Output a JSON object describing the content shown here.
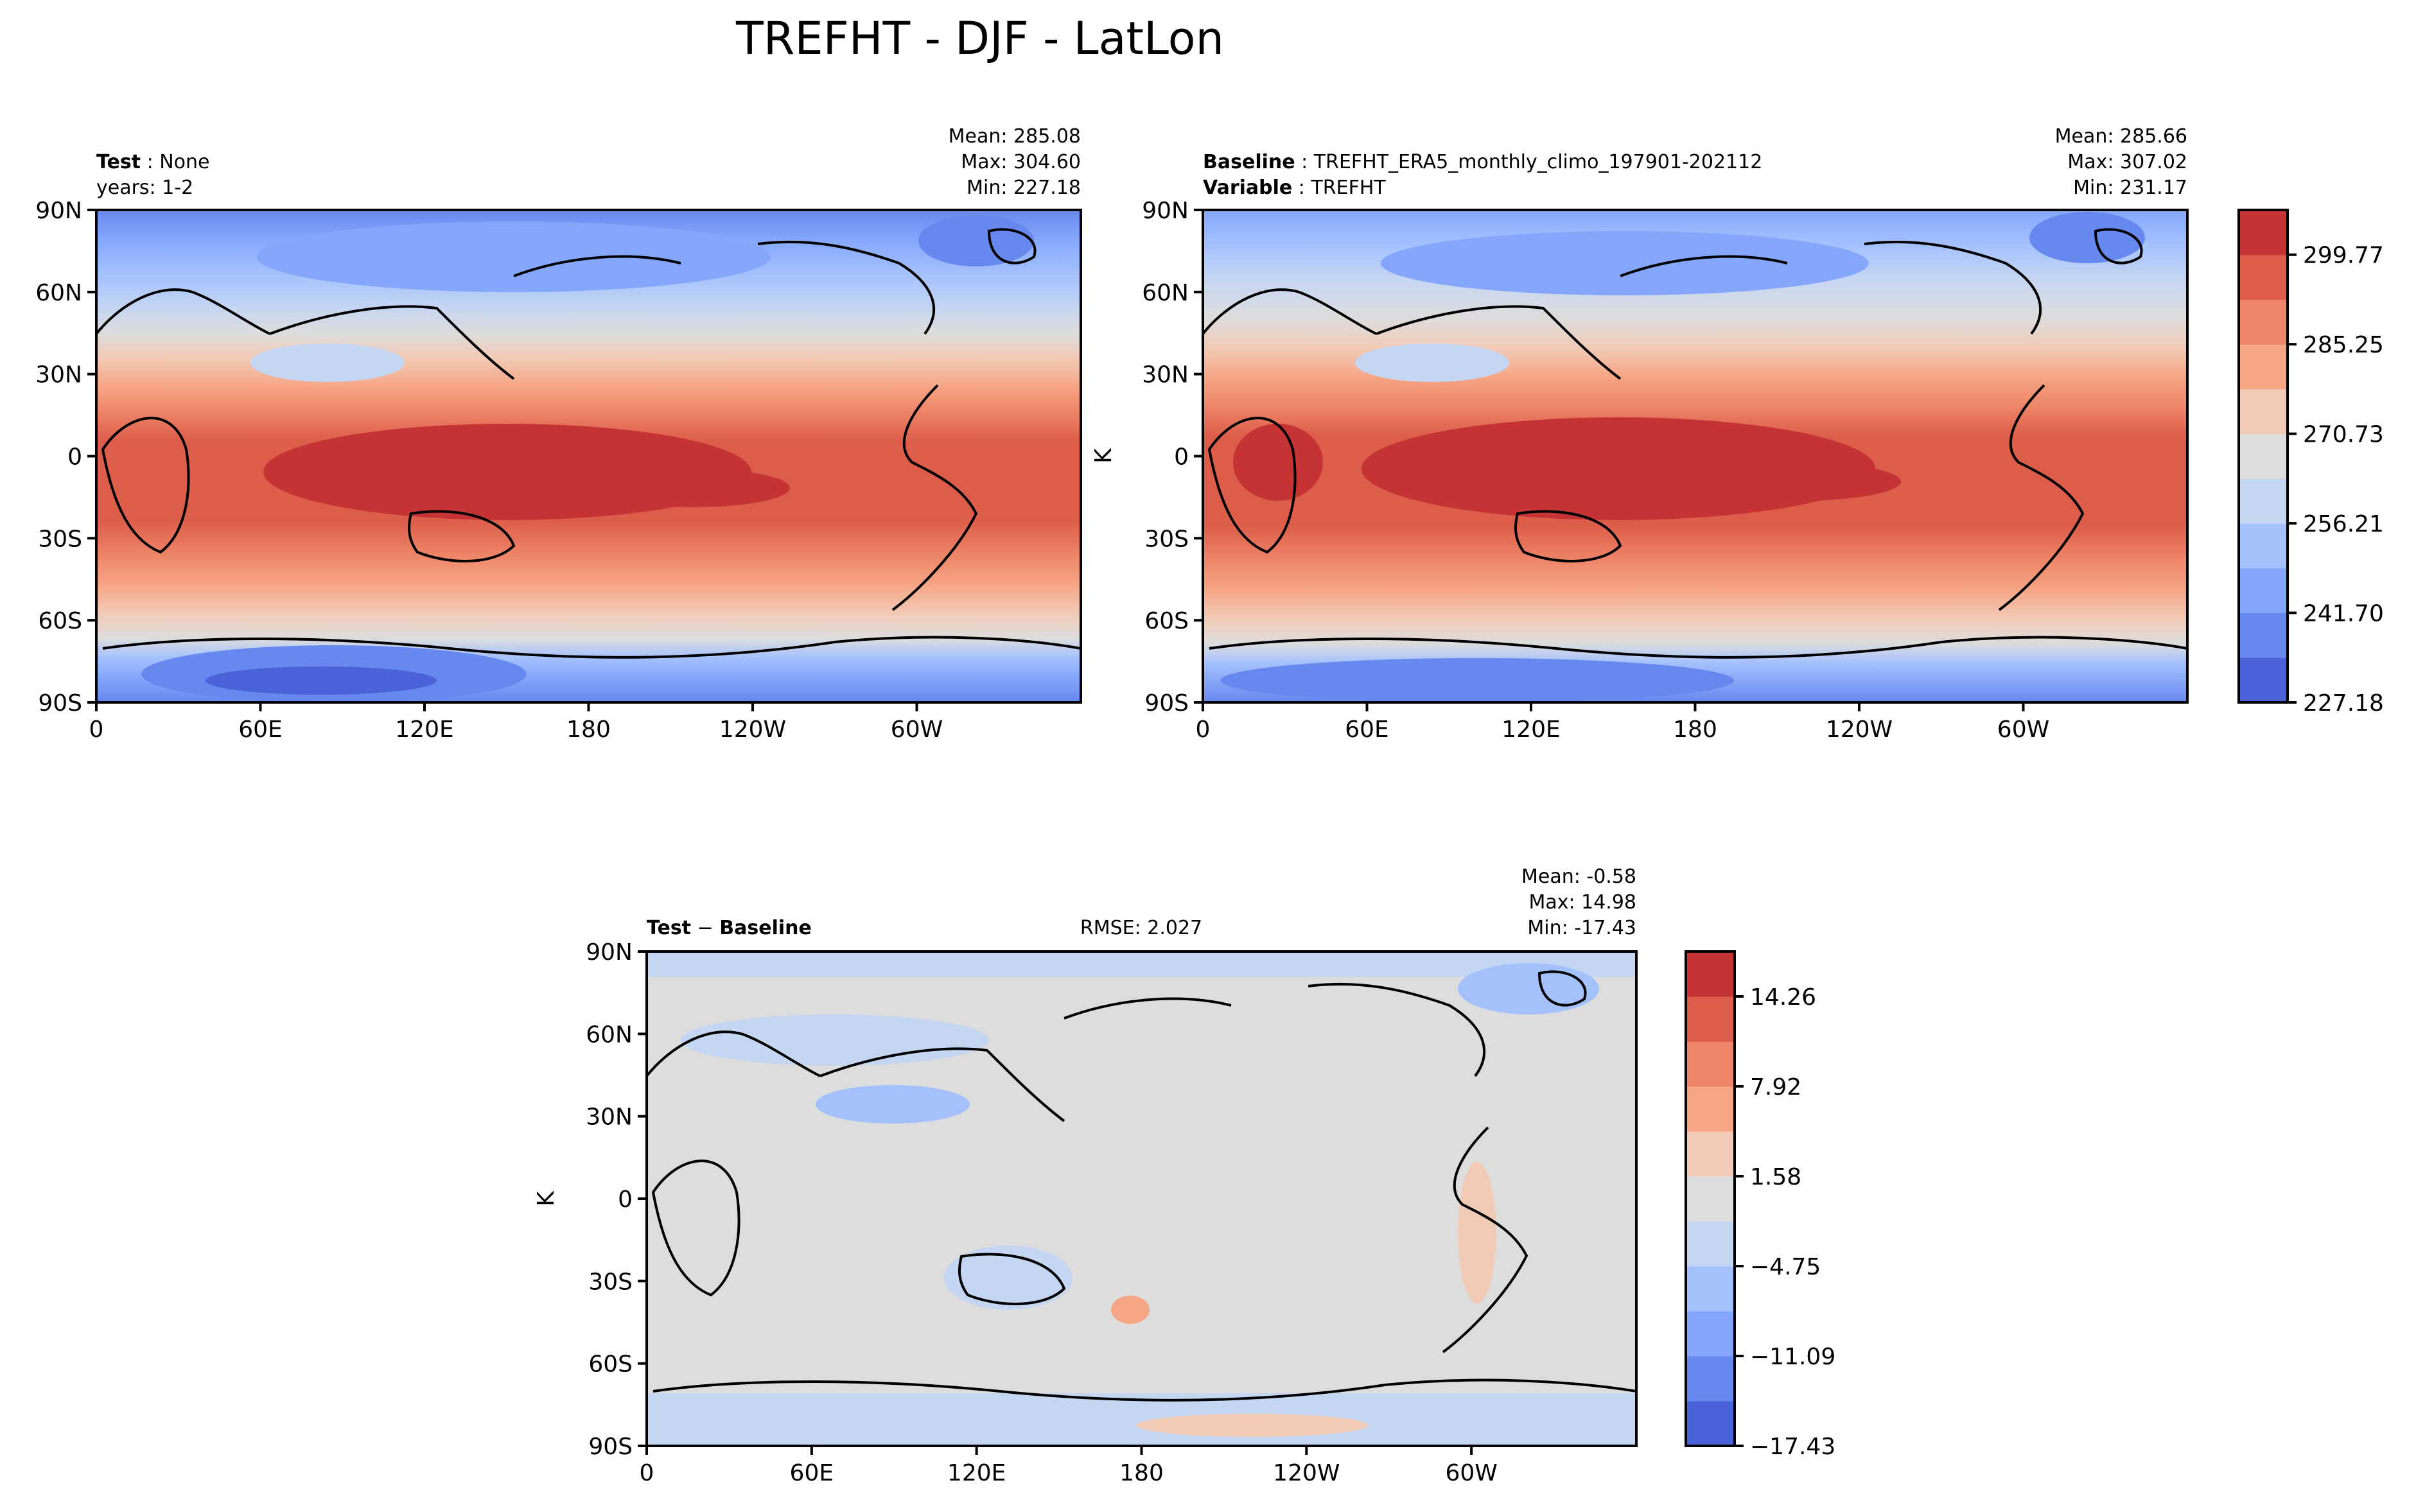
{
  "figure": {
    "title": "TREFHT - DJF - LatLon",
    "colors": {
      "abs_levels": [
        "#4a63d8",
        "#6788ee",
        "#84a7fc",
        "#a4c1fe",
        "#c5d6f2",
        "#dddddd",
        "#f2cbb7",
        "#f6a585",
        "#ee8468",
        "#dc5d4a",
        "#c53334"
      ],
      "diff_levels": [
        "#4a63d8",
        "#6788ee",
        "#84a7fc",
        "#a4c1fe",
        "#c5d6f2",
        "#dddddd",
        "#f2cbb7",
        "#f6a585",
        "#ee8468",
        "#dc5d4a",
        "#c53334"
      ],
      "neutral": "#dddddd"
    }
  },
  "axes": {
    "xticks": [
      "0",
      "60E",
      "120E",
      "180",
      "120W",
      "60W"
    ],
    "yticks": [
      "90N",
      "60N",
      "30N",
      "0",
      "30S",
      "60S",
      "90S"
    ]
  },
  "panels": {
    "test": {
      "label_bold": "Test",
      "label_value": "None",
      "line2": "years: 1-2",
      "mean": "Mean: 285.08",
      "max": "Max: 304.60",
      "min": "Min: 227.18"
    },
    "baseline": {
      "label_bold": "Baseline",
      "label_value": "TREFHT_ERA5_monthly_climo_197901-202112",
      "label2_bold": "Variable",
      "label2_value": "TREFHT",
      "mean": "Mean: 285.66",
      "max": "Max: 307.02",
      "min": "Min: 231.17",
      "ylabel": "K"
    },
    "diff": {
      "label_bold_a": "Test",
      "label_op": "−",
      "label_bold_b": "Baseline",
      "rmse": "RMSE: 2.027",
      "mean": "Mean: -0.58",
      "max": "Max: 14.98",
      "min": "Min: -17.43",
      "ylabel": "K"
    }
  },
  "colorbars": {
    "abs_ticks": [
      "227.18",
      "241.70",
      "256.21",
      "270.73",
      "285.25",
      "299.77"
    ],
    "diff_ticks": [
      "−17.43",
      "−11.09",
      "−4.75",
      "1.58",
      "7.92",
      "14.26"
    ]
  },
  "chart_data": [
    {
      "type": "heatmap",
      "title": "",
      "variable": "TREFHT",
      "units": "K",
      "x": "longitude",
      "y": "latitude",
      "xlim": [
        0,
        360
      ],
      "ylim": [
        -90,
        90
      ],
      "stats": {
        "mean": 285.08,
        "max": 304.6,
        "min": 227.18
      },
      "color_range": [
        227.18,
        307.02
      ]
    },
    {
      "type": "heatmap",
      "title": "",
      "variable": "TREFHT",
      "units": "K",
      "x": "longitude",
      "y": "latitude",
      "xlim": [
        0,
        360
      ],
      "ylim": [
        -90,
        90
      ],
      "stats": {
        "mean": 285.66,
        "max": 307.02,
        "min": 231.17
      },
      "color_range": [
        227.18,
        307.02
      ]
    },
    {
      "type": "heatmap",
      "title": "",
      "variable": "TREFHT difference",
      "units": "K",
      "x": "longitude",
      "y": "latitude",
      "xlim": [
        0,
        360
      ],
      "ylim": [
        -90,
        90
      ],
      "stats": {
        "mean": -0.58,
        "max": 14.98,
        "min": -17.43,
        "rmse": 2.027
      },
      "color_range": [
        -17.43,
        17.43
      ]
    }
  ]
}
